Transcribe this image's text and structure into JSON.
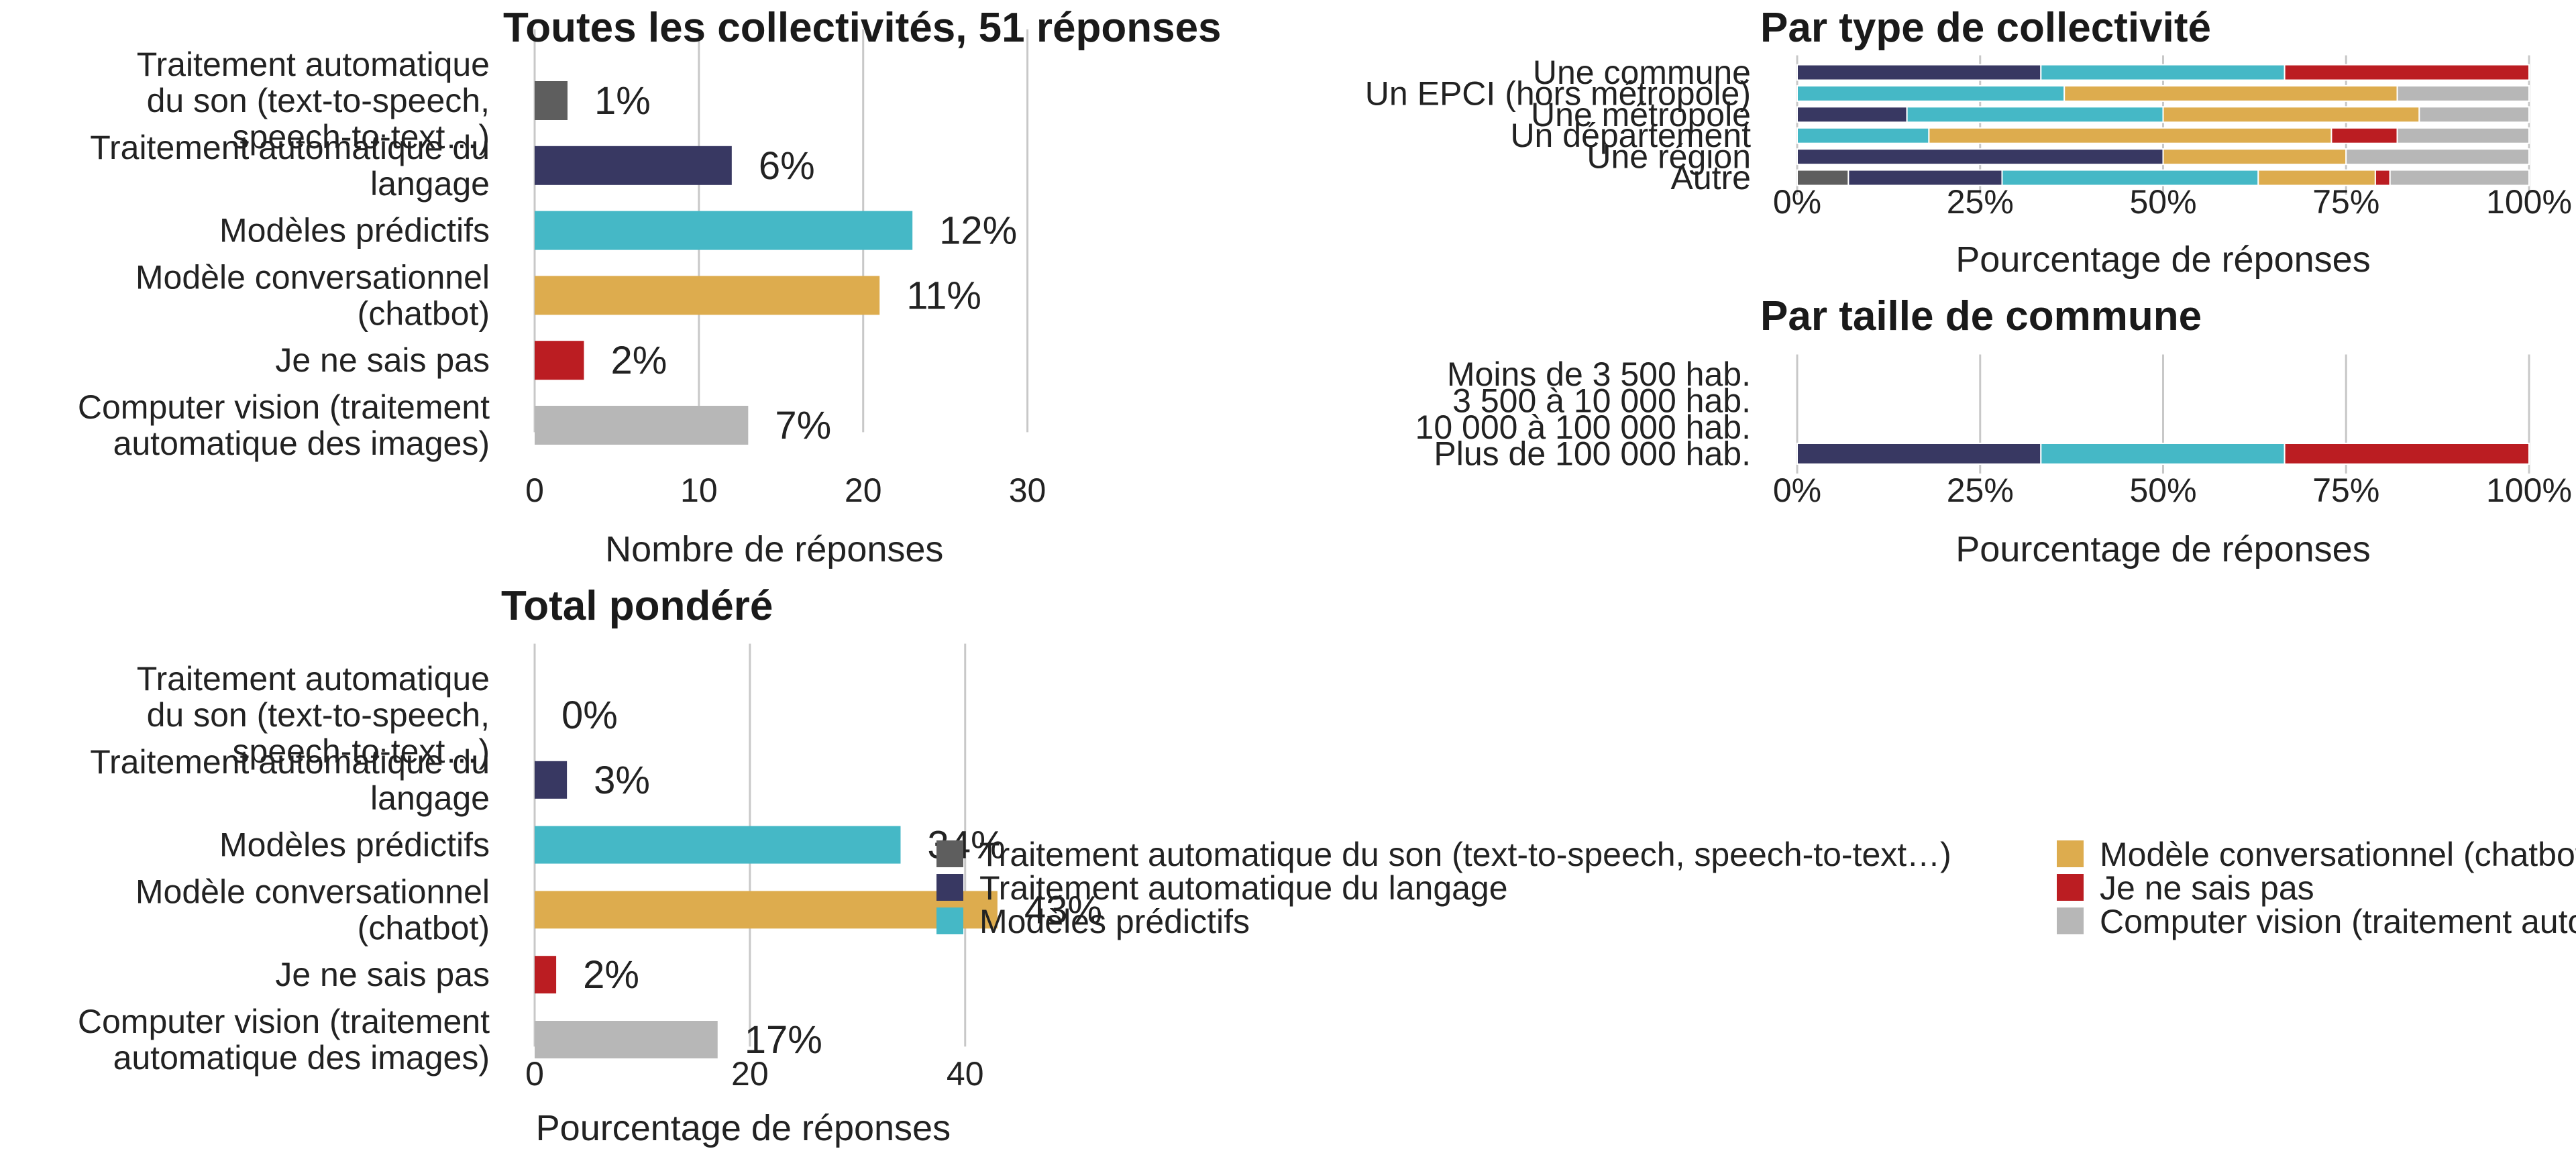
{
  "chart_data": [
    {
      "id": "total",
      "type": "bar",
      "orientation": "horizontal",
      "title": "Toutes les collectivités, 51 réponses",
      "categories": [
        [
          "Traitement automatique",
          "du son (text-to-speech,",
          "speech-to-text…)"
        ],
        [
          "Traitement automatique du",
          "langage"
        ],
        [
          "Modèles prédictifs"
        ],
        [
          "Modèle conversationnel",
          "(chatbot)"
        ],
        [
          "Je ne sais pas"
        ],
        [
          "Computer vision (traitement",
          "automatique des images)"
        ]
      ],
      "values": [
        2,
        12,
        23,
        21,
        3,
        13
      ],
      "data_labels": [
        "1%",
        "6%",
        "12%",
        "11%",
        "2%",
        "7%"
      ],
      "colors": [
        "#5e5e5e",
        "#383862",
        "#45b8c6",
        "#ddac4e",
        "#bb1d22",
        "#b7b7b7"
      ],
      "xlim": [
        0,
        35
      ],
      "xticks": [
        0,
        10,
        20,
        30
      ],
      "xtick_labels": [
        "0",
        "10",
        "20",
        "30"
      ],
      "xlabel": "Nombre de réponses",
      "grid": "vertical"
    },
    {
      "id": "par_type",
      "type": "bar",
      "stacked": "percent",
      "orientation": "horizontal",
      "title": "Par type de collectivité",
      "categories": [
        "Une commune",
        "Un EPCI (hors métropole)",
        "Une métropole",
        "Un département",
        "Une région",
        "Autre"
      ],
      "series": [
        {
          "color": "#5e5e5e",
          "values": [
            0,
            0,
            0,
            0,
            0,
            7
          ]
        },
        {
          "color": "#383862",
          "values": [
            33.3,
            0,
            15,
            0,
            50,
            21
          ]
        },
        {
          "color": "#45b8c6",
          "values": [
            33.3,
            36.5,
            35,
            18,
            0,
            35
          ]
        },
        {
          "color": "#ddac4e",
          "values": [
            0,
            45.5,
            35,
            55,
            25,
            16
          ]
        },
        {
          "color": "#bb1d22",
          "values": [
            33.4,
            0,
            0,
            9,
            0,
            2
          ]
        },
        {
          "color": "#b7b7b7",
          "values": [
            0,
            18,
            15,
            18,
            25,
            19
          ]
        }
      ],
      "xlim": [
        0,
        100
      ],
      "xticks": [
        0,
        25,
        50,
        75,
        100
      ],
      "xtick_labels": [
        "0%",
        "25%",
        "50%",
        "75%",
        "100%"
      ],
      "xlabel": "Pourcentage de réponses"
    },
    {
      "id": "par_taille",
      "type": "bar",
      "stacked": "percent",
      "orientation": "horizontal",
      "title": "Par taille de commune",
      "categories": [
        "Moins de 3 500 hab.",
        "3 500 à 10 000 hab.",
        "10 000 à 100 000 hab.",
        "Plus de 100 000 hab."
      ],
      "series": [
        {
          "color": "#5e5e5e",
          "values": [
            0,
            0,
            0,
            0
          ]
        },
        {
          "color": "#383862",
          "values": [
            0,
            0,
            0,
            33.3
          ]
        },
        {
          "color": "#45b8c6",
          "values": [
            0,
            0,
            0,
            33.3
          ]
        },
        {
          "color": "#ddac4e",
          "values": [
            0,
            0,
            0,
            0
          ]
        },
        {
          "color": "#bb1d22",
          "values": [
            0,
            0,
            0,
            33.4
          ]
        },
        {
          "color": "#b7b7b7",
          "values": [
            0,
            0,
            0,
            0
          ]
        }
      ],
      "xlim": [
        0,
        100
      ],
      "xticks": [
        0,
        25,
        50,
        75,
        100
      ],
      "xtick_labels": [
        "0%",
        "25%",
        "50%",
        "75%",
        "100%"
      ],
      "xlabel": "Pourcentage de réponses"
    },
    {
      "id": "pondere",
      "type": "bar",
      "orientation": "horizontal",
      "title": "Total pondéré",
      "categories": [
        [
          "Traitement automatique",
          "du son (text-to-speech,",
          "speech-to-text…)"
        ],
        [
          "Traitement automatique du",
          "langage"
        ],
        [
          "Modèles prédictifs"
        ],
        [
          "Modèle conversationnel",
          "(chatbot)"
        ],
        [
          "Je ne sais pas"
        ],
        [
          "Computer vision (traitement",
          "automatique des images)"
        ]
      ],
      "values": [
        0,
        3,
        34,
        43,
        2,
        17
      ],
      "data_labels": [
        "0%",
        "3%",
        "34%",
        "43%",
        "2%",
        "17%"
      ],
      "colors": [
        "#5e5e5e",
        "#383862",
        "#45b8c6",
        "#ddac4e",
        "#bb1d22",
        "#b7b7b7"
      ],
      "xlim": [
        0,
        46
      ],
      "xticks": [
        0,
        20,
        40
      ],
      "xtick_labels": [
        "0",
        "20",
        "40"
      ],
      "xlabel": "Pourcentage de réponses",
      "grid": "vertical"
    }
  ],
  "legend": {
    "placement": "bottom-right",
    "items": [
      {
        "label": "Traitement automatique du son (text-to-speech, speech-to-text…)",
        "color": "#5e5e5e"
      },
      {
        "label": "Traitement automatique du langage",
        "color": "#383862"
      },
      {
        "label": "Modèles prédictifs",
        "color": "#45b8c6"
      },
      {
        "label": "Modèle conversationnel (chatbot)",
        "color": "#ddac4e"
      },
      {
        "label": "Je ne sais pas",
        "color": "#bb1d22"
      },
      {
        "label": "Computer vision (traitement automatique des images)",
        "color": "#b7b7b7"
      }
    ]
  }
}
